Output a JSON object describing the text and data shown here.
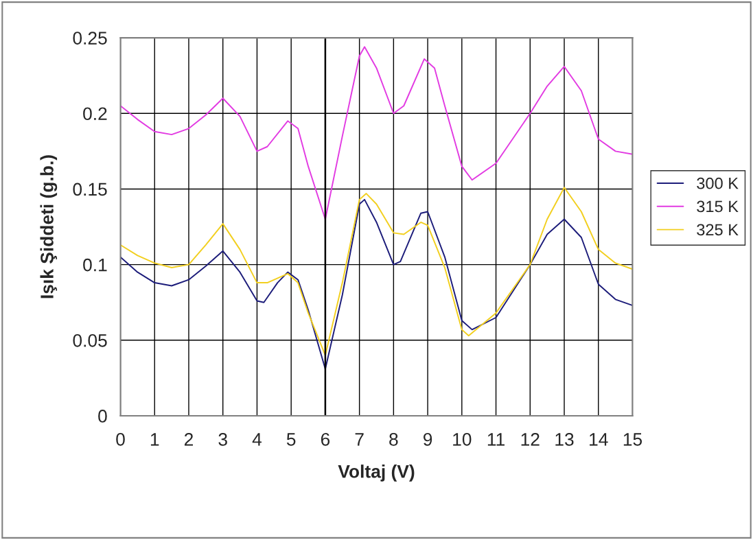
{
  "chart_data": {
    "type": "line",
    "xlabel": "Voltaj (V)",
    "ylabel": "Işık Şiddeti (g.b.)",
    "xlim": [
      0,
      15
    ],
    "xticks": [
      0,
      1,
      2,
      3,
      4,
      5,
      6,
      7,
      8,
      9,
      10,
      11,
      12,
      13,
      14,
      15
    ],
    "ylim": [
      0,
      0.25
    ],
    "yticks": [
      0,
      0.05,
      0.1,
      0.15,
      0.2,
      0.25
    ],
    "grid": true,
    "legend": "right",
    "marker": "none",
    "line_style": "solid",
    "ref_lines": [
      {
        "axis": "x",
        "value": 6,
        "color": "#000000"
      }
    ],
    "series": [
      {
        "name": "300 K",
        "color": "#1c1c7a",
        "x": [
          0,
          0.5,
          1,
          1.5,
          2,
          2.5,
          3,
          3.5,
          4,
          4.2,
          4.6,
          4.9,
          5.2,
          5.5,
          6,
          6.5,
          7,
          7.15,
          7.5,
          8,
          8.2,
          8.8,
          9,
          9.5,
          10,
          10.3,
          11,
          12,
          12.5,
          13,
          13.5,
          14,
          14.5,
          15
        ],
        "values": [
          0.105,
          0.095,
          0.088,
          0.086,
          0.09,
          0.099,
          0.109,
          0.095,
          0.076,
          0.075,
          0.088,
          0.095,
          0.09,
          0.07,
          0.031,
          0.08,
          0.14,
          0.143,
          0.128,
          0.1,
          0.102,
          0.134,
          0.135,
          0.105,
          0.063,
          0.057,
          0.065,
          0.1,
          0.12,
          0.13,
          0.118,
          0.087,
          0.077,
          0.073
        ]
      },
      {
        "name": "315 K",
        "color": "#e23be2",
        "x": [
          0,
          0.5,
          1,
          1.5,
          2,
          2.5,
          3,
          3.5,
          4,
          4.3,
          4.9,
          5.2,
          5.5,
          6,
          6.5,
          7,
          7.15,
          7.5,
          8,
          8.3,
          8.9,
          9.2,
          9.5,
          10,
          10.3,
          11,
          12,
          12.5,
          13,
          13.5,
          14,
          14.5,
          15
        ],
        "values": [
          0.205,
          0.196,
          0.188,
          0.186,
          0.19,
          0.199,
          0.21,
          0.198,
          0.175,
          0.178,
          0.195,
          0.19,
          0.165,
          0.13,
          0.185,
          0.238,
          0.244,
          0.23,
          0.2,
          0.205,
          0.236,
          0.23,
          0.205,
          0.165,
          0.156,
          0.167,
          0.2,
          0.218,
          0.231,
          0.215,
          0.183,
          0.175,
          0.173
        ]
      },
      {
        "name": "325 K",
        "color": "#f2cf1f",
        "x": [
          0,
          0.5,
          1,
          1.5,
          2,
          2.5,
          3,
          3.5,
          4,
          4.3,
          4.9,
          5.2,
          5.5,
          6,
          6.5,
          7,
          7.2,
          7.5,
          8,
          8.3,
          8.8,
          9,
          9.5,
          10,
          10.2,
          11,
          12,
          12.5,
          13,
          13.5,
          14,
          14.5,
          15
        ],
        "values": [
          0.113,
          0.106,
          0.101,
          0.098,
          0.1,
          0.113,
          0.127,
          0.11,
          0.088,
          0.088,
          0.094,
          0.088,
          0.068,
          0.04,
          0.088,
          0.143,
          0.147,
          0.14,
          0.121,
          0.12,
          0.128,
          0.126,
          0.098,
          0.057,
          0.053,
          0.068,
          0.1,
          0.13,
          0.151,
          0.135,
          0.11,
          0.101,
          0.097
        ]
      }
    ]
  }
}
